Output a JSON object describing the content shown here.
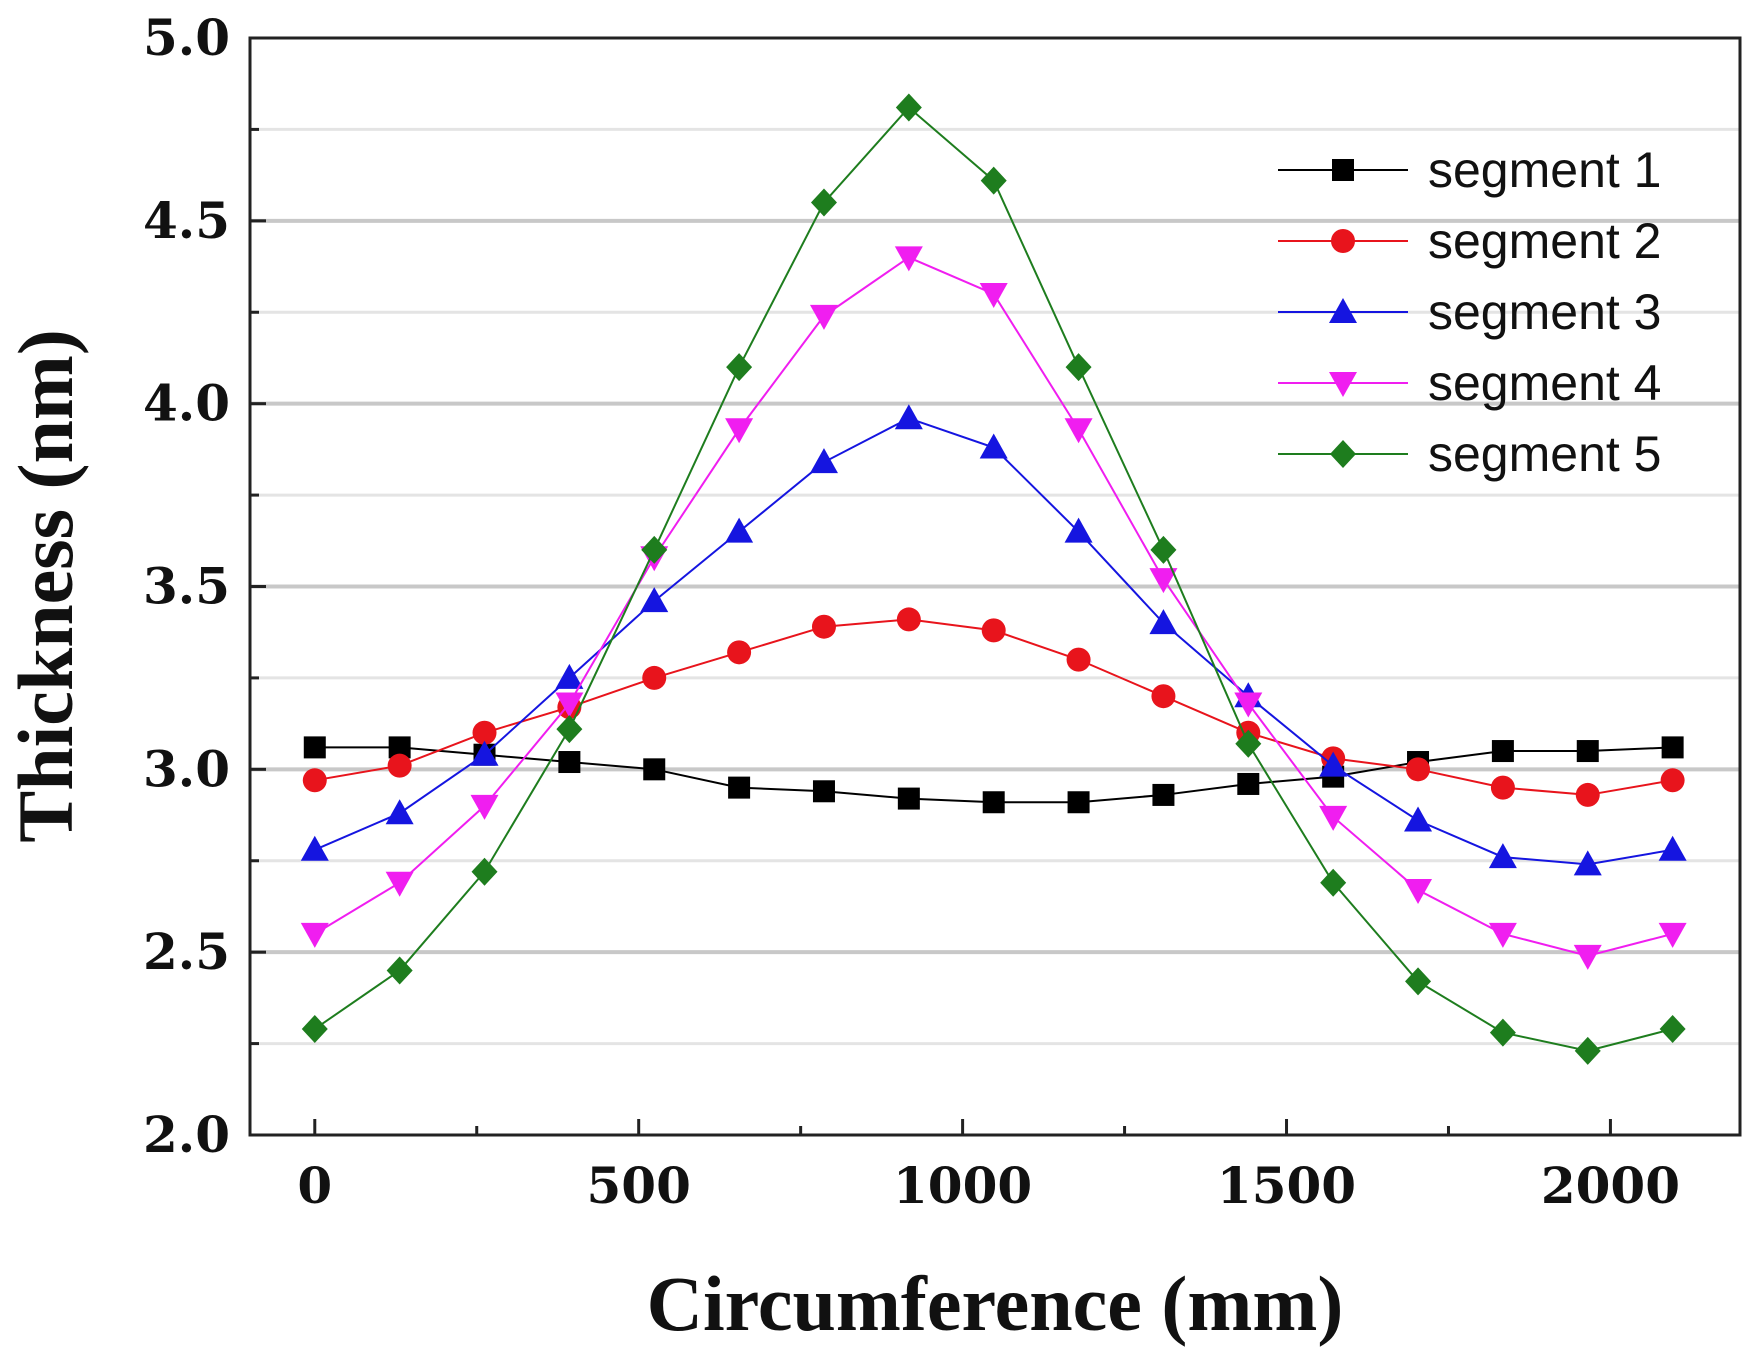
{
  "chart_data": {
    "type": "line",
    "title": "",
    "xlabel": "Circumference (mm)",
    "ylabel": "Thickness (nm)",
    "xlim": [
      -100,
      2200
    ],
    "ylim": [
      2.0,
      5.0
    ],
    "xticks": [
      0,
      500,
      1000,
      1500,
      2000
    ],
    "xtick_labels": [
      "0",
      "500",
      "1000",
      "1500",
      "2000"
    ],
    "yticks": [
      2.0,
      2.5,
      3.0,
      3.5,
      4.0,
      4.5,
      5.0
    ],
    "ytick_labels": [
      "2.0",
      "2.5",
      "3.0",
      "3.5",
      "4.0",
      "4.5",
      "5.0"
    ],
    "grid": "horizontal",
    "legend_position": "top-right",
    "x": [
      0,
      131,
      262,
      393,
      524,
      655,
      786,
      917,
      1048,
      1179,
      1310,
      1441,
      1572,
      1703,
      1834,
      1965,
      2096
    ],
    "series": [
      {
        "name": "segment 1",
        "color": "#000000",
        "marker": "square",
        "values": [
          3.06,
          3.06,
          3.04,
          3.02,
          3.0,
          2.95,
          2.94,
          2.92,
          2.91,
          2.91,
          2.93,
          2.96,
          2.98,
          3.02,
          3.05,
          3.05,
          3.06
        ]
      },
      {
        "name": "segment 2",
        "color": "#e8141c",
        "marker": "circle",
        "values": [
          2.97,
          3.01,
          3.1,
          3.17,
          3.25,
          3.32,
          3.39,
          3.41,
          3.38,
          3.3,
          3.2,
          3.1,
          3.03,
          3.0,
          2.95,
          2.93,
          2.97
        ]
      },
      {
        "name": "segment 3",
        "color": "#1515e0",
        "marker": "triangle-up",
        "values": [
          2.78,
          2.88,
          3.04,
          3.25,
          3.46,
          3.65,
          3.84,
          3.96,
          3.88,
          3.65,
          3.4,
          3.2,
          3.01,
          2.86,
          2.76,
          2.74,
          2.78
        ]
      },
      {
        "name": "segment 4",
        "color": "#f01ef0",
        "marker": "triangle-down",
        "values": [
          2.55,
          2.69,
          2.9,
          3.18,
          3.58,
          3.93,
          4.24,
          4.4,
          4.3,
          3.93,
          3.52,
          3.18,
          2.87,
          2.67,
          2.55,
          2.49,
          2.55
        ]
      },
      {
        "name": "segment 5",
        "color": "#1e7d1e",
        "marker": "diamond",
        "values": [
          2.29,
          2.45,
          2.72,
          3.11,
          3.6,
          4.1,
          4.55,
          4.81,
          4.61,
          4.1,
          3.6,
          3.07,
          2.69,
          2.42,
          2.28,
          2.23,
          2.29
        ]
      }
    ]
  }
}
